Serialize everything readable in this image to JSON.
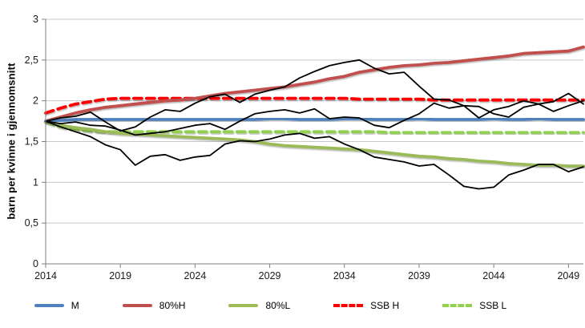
{
  "chart_data": {
    "type": "line",
    "title": "",
    "xlabel": "",
    "ylabel": "barn per kvinne i gjennomsnitt",
    "x_range": [
      2014,
      2050
    ],
    "ylim": [
      0,
      3
    ],
    "grid": "horizontal-gridlines",
    "legend_position": "bottom",
    "x_ticks": [
      "2014",
      "2019",
      "2024",
      "2029",
      "2034",
      "2039",
      "2044",
      "2049"
    ],
    "y_ticks": [
      {
        "v": 0,
        "label": "0"
      },
      {
        "v": 0.5,
        "label": "0,5"
      },
      {
        "v": 1,
        "label": "1"
      },
      {
        "v": 1.5,
        "label": "1,5"
      },
      {
        "v": 2,
        "label": "2"
      },
      {
        "v": 2.5,
        "label": "2,5"
      },
      {
        "v": 3,
        "label": "3"
      }
    ],
    "years": [
      2014,
      2015,
      2016,
      2017,
      2018,
      2019,
      2020,
      2021,
      2022,
      2023,
      2024,
      2025,
      2026,
      2027,
      2028,
      2029,
      2030,
      2031,
      2032,
      2033,
      2034,
      2035,
      2036,
      2037,
      2038,
      2039,
      2040,
      2041,
      2042,
      2043,
      2044,
      2045,
      2046,
      2047,
      2048,
      2049,
      2050
    ],
    "series": [
      {
        "name": "M",
        "color": "#4F81BD",
        "style": "solid",
        "in_legend": true,
        "values": [
          1.75,
          1.76,
          1.77,
          1.77,
          1.77,
          1.77,
          1.77,
          1.77,
          1.77,
          1.77,
          1.77,
          1.77,
          1.77,
          1.77,
          1.77,
          1.78,
          1.78,
          1.77,
          1.77,
          1.77,
          1.78,
          1.78,
          1.77,
          1.77,
          1.77,
          1.78,
          1.77,
          1.77,
          1.77,
          1.77,
          1.78,
          1.77,
          1.77,
          1.78,
          1.77,
          1.77,
          1.77
        ]
      },
      {
        "name": "80%H",
        "color": "#C0504D",
        "style": "solid",
        "in_legend": true,
        "values": [
          1.75,
          1.8,
          1.85,
          1.89,
          1.92,
          1.94,
          1.96,
          1.98,
          2.0,
          2.01,
          2.03,
          2.06,
          2.09,
          2.11,
          2.13,
          2.15,
          2.17,
          2.2,
          2.23,
          2.27,
          2.3,
          2.35,
          2.38,
          2.41,
          2.43,
          2.44,
          2.46,
          2.47,
          2.49,
          2.51,
          2.53,
          2.55,
          2.58,
          2.59,
          2.6,
          2.61,
          2.66
        ]
      },
      {
        "name": "80%L",
        "color": "#9BBB59",
        "style": "solid",
        "in_legend": true,
        "values": [
          1.75,
          1.7,
          1.67,
          1.65,
          1.62,
          1.6,
          1.59,
          1.58,
          1.57,
          1.56,
          1.55,
          1.54,
          1.53,
          1.52,
          1.5,
          1.47,
          1.45,
          1.44,
          1.43,
          1.42,
          1.41,
          1.4,
          1.38,
          1.36,
          1.34,
          1.32,
          1.31,
          1.29,
          1.28,
          1.26,
          1.25,
          1.23,
          1.22,
          1.21,
          1.21,
          1.2,
          1.2
        ]
      },
      {
        "name": "SSB H",
        "color": "#FF0000",
        "style": "dashed",
        "in_legend": true,
        "values": [
          1.85,
          1.91,
          1.96,
          1.99,
          2.02,
          2.03,
          2.03,
          2.03,
          2.03,
          2.03,
          2.03,
          2.03,
          2.03,
          2.03,
          2.03,
          2.03,
          2.03,
          2.03,
          2.03,
          2.03,
          2.03,
          2.02,
          2.02,
          2.02,
          2.02,
          2.02,
          2.01,
          2.01,
          2.01,
          2.01,
          2.01,
          2.01,
          2.01,
          2.01,
          2.01,
          2.01,
          2.01
        ]
      },
      {
        "name": "SSB L",
        "color": "#92D050",
        "style": "dashed",
        "in_legend": true,
        "values": [
          1.74,
          1.68,
          1.65,
          1.63,
          1.62,
          1.62,
          1.62,
          1.62,
          1.62,
          1.62,
          1.62,
          1.62,
          1.62,
          1.62,
          1.62,
          1.62,
          1.62,
          1.62,
          1.62,
          1.62,
          1.62,
          1.62,
          1.62,
          1.61,
          1.61,
          1.61,
          1.61,
          1.61,
          1.61,
          1.61,
          1.61,
          1.61,
          1.61,
          1.61,
          1.61,
          1.61,
          1.61
        ]
      },
      {
        "name": "simulated-path-high",
        "color": "#000000",
        "style": "solid",
        "in_legend": false,
        "values": [
          1.75,
          1.79,
          1.81,
          1.86,
          1.74,
          1.63,
          1.68,
          1.8,
          1.89,
          1.87,
          1.97,
          2.05,
          2.08,
          1.98,
          2.08,
          2.13,
          2.17,
          2.28,
          2.36,
          2.43,
          2.47,
          2.5,
          2.4,
          2.33,
          2.35,
          2.18,
          2.02,
          2.01,
          1.94,
          1.93,
          1.84,
          1.8,
          1.92,
          1.96,
          1.99,
          2.09,
          1.96
        ]
      },
      {
        "name": "simulated-path-medium",
        "color": "#000000",
        "style": "solid",
        "in_legend": false,
        "values": [
          1.75,
          1.72,
          1.74,
          1.7,
          1.69,
          1.64,
          1.58,
          1.6,
          1.62,
          1.66,
          1.7,
          1.72,
          1.65,
          1.75,
          1.84,
          1.87,
          1.89,
          1.85,
          1.9,
          1.78,
          1.8,
          1.79,
          1.7,
          1.67,
          1.76,
          1.84,
          1.97,
          1.91,
          1.94,
          1.79,
          1.89,
          1.93,
          2.0,
          1.96,
          1.87,
          1.94,
          2.0
        ]
      },
      {
        "name": "simulated-path-low",
        "color": "#000000",
        "style": "solid",
        "in_legend": false,
        "values": [
          1.75,
          1.68,
          1.62,
          1.56,
          1.46,
          1.4,
          1.21,
          1.32,
          1.34,
          1.27,
          1.31,
          1.33,
          1.47,
          1.51,
          1.5,
          1.53,
          1.58,
          1.6,
          1.54,
          1.56,
          1.47,
          1.4,
          1.31,
          1.28,
          1.25,
          1.2,
          1.22,
          1.09,
          0.95,
          0.92,
          0.94,
          1.09,
          1.15,
          1.22,
          1.22,
          1.13,
          1.19
        ]
      }
    ],
    "axis_colors": {
      "axis_line": "#7F7F7F",
      "gridline": "#C8C8C8",
      "tick_text": "#1A1A1A"
    }
  }
}
